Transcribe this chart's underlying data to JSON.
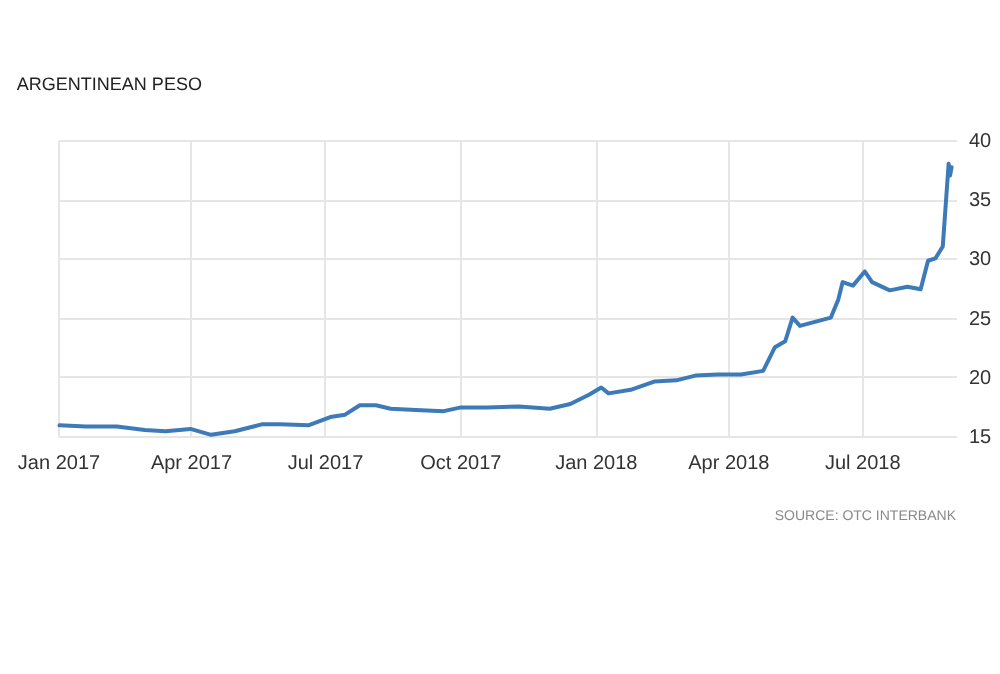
{
  "chart_data": {
    "type": "line",
    "title": "ARGENTINEAN PESO",
    "annotations": [
      "SOURCE: OTC INTERBANK"
    ],
    "x": [
      "2017-01-02",
      "2017-01-20",
      "2017-02-10",
      "2017-03-01",
      "2017-03-15",
      "2017-04-01",
      "2017-04-15",
      "2017-05-01",
      "2017-05-20",
      "2017-06-01",
      "2017-06-20",
      "2017-07-05",
      "2017-07-15",
      "2017-07-25",
      "2017-08-05",
      "2017-08-15",
      "2017-09-01",
      "2017-09-20",
      "2017-10-01",
      "2017-10-20",
      "2017-11-10",
      "2017-12-01",
      "2017-12-15",
      "2017-12-28",
      "2018-01-05",
      "2018-01-10",
      "2018-01-25",
      "2018-02-10",
      "2018-02-25",
      "2018-03-10",
      "2018-03-25",
      "2018-04-10",
      "2018-04-25",
      "2018-05-03",
      "2018-05-10",
      "2018-05-15",
      "2018-05-20",
      "2018-06-10",
      "2018-06-15",
      "2018-06-18",
      "2018-06-25",
      "2018-07-03",
      "2018-07-08",
      "2018-07-20",
      "2018-08-01",
      "2018-08-10",
      "2018-08-15",
      "2018-08-20",
      "2018-08-25",
      "2018-08-29",
      "2018-08-30",
      "2018-08-31"
    ],
    "series": [
      {
        "color": "#3d7ab8",
        "values": [
          15.9,
          15.8,
          15.8,
          15.5,
          15.4,
          15.6,
          15.1,
          15.4,
          16.0,
          16.0,
          15.9,
          16.6,
          16.8,
          17.6,
          17.6,
          17.3,
          17.2,
          17.1,
          17.4,
          17.4,
          17.5,
          17.3,
          17.7,
          18.5,
          19.1,
          18.6,
          18.9,
          19.6,
          19.7,
          20.1,
          20.2,
          20.2,
          20.5,
          22.5,
          23.0,
          25.0,
          24.3,
          25.0,
          26.5,
          28.0,
          27.7,
          28.9,
          28.0,
          27.3,
          27.6,
          27.4,
          29.8,
          30.0,
          31.0,
          38.0,
          37.0,
          37.7
        ]
      }
    ],
    "xlim": [
      "2017-01-01",
      "2018-09-03"
    ],
    "xticks": [
      {
        "value": "2017-01-01",
        "label": "Jan 2017"
      },
      {
        "value": "2017-04-01",
        "label": "Apr 2017"
      },
      {
        "value": "2017-07-01",
        "label": "Jul 2017"
      },
      {
        "value": "2017-10-01",
        "label": "Oct 2017"
      },
      {
        "value": "2018-01-01",
        "label": "Jan 2018"
      },
      {
        "value": "2018-04-01",
        "label": "Apr 2018"
      },
      {
        "value": "2018-07-01",
        "label": "Jul 2018"
      }
    ],
    "ylim": [
      15,
      40
    ],
    "yticks": [
      15,
      20,
      25,
      30,
      35,
      40
    ],
    "grid": true
  }
}
